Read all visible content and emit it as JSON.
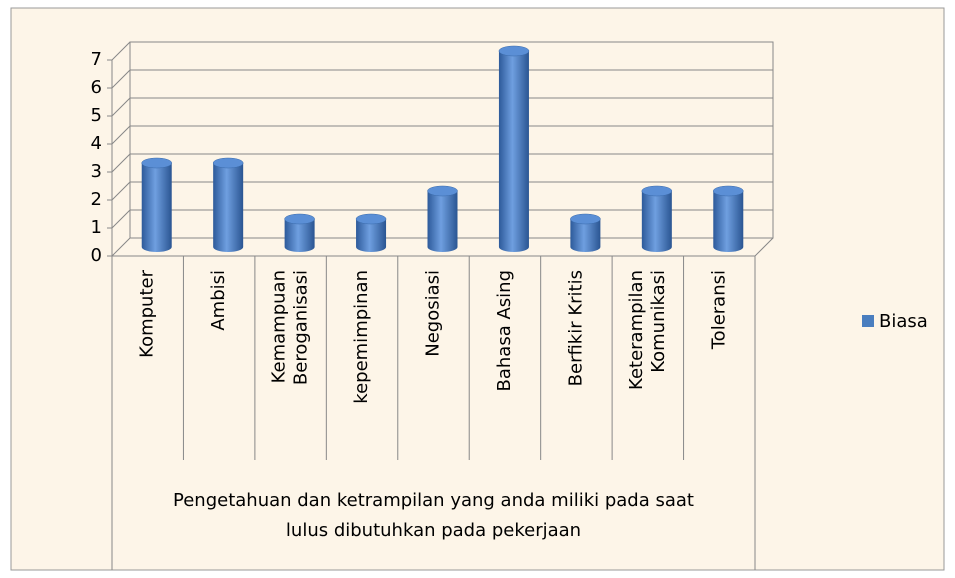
{
  "chart_data": {
    "type": "bar",
    "categories": [
      "Komputer",
      "Ambisi",
      "Kemampuan\nBeroganisasi",
      "kepemimpinan",
      "Negosiasi",
      "Bahasa Asing",
      "Berfikir Kritis",
      "Keterampilan\nKomunikasi",
      "Toleransi"
    ],
    "series": [
      {
        "name": "Biasa",
        "color": "#4a7ebf",
        "values": [
          3,
          3,
          1,
          1,
          2,
          7,
          1,
          2,
          2
        ]
      }
    ],
    "x_label": "Pengetahuan dan ketrampilan yang anda miliki pada saat\nlulus dibutuhkan pada pekerjaan",
    "ylim": [
      0,
      7
    ],
    "yticks": [
      0,
      1,
      2,
      3,
      4,
      5,
      6,
      7
    ],
    "grid": true,
    "legend": "right"
  }
}
